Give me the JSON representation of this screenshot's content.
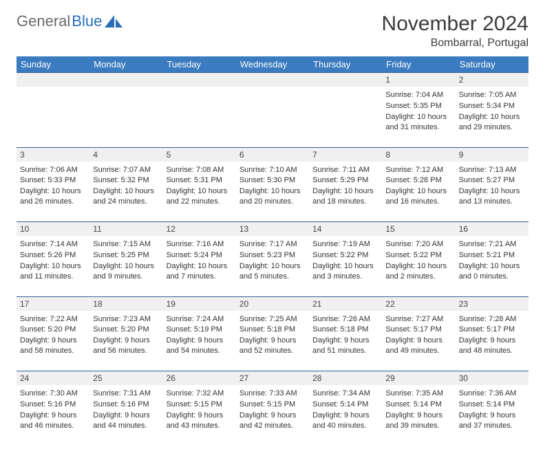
{
  "logo": {
    "text1": "General",
    "text2": "Blue"
  },
  "title": "November 2024",
  "location": "Bombarral, Portugal",
  "colors": {
    "header_bg": "#3b7bbf",
    "header_text": "#ffffff",
    "day_row_bg": "#f0f0f0",
    "border": "#2f5f95",
    "logo_gray": "#6b6b6b",
    "logo_blue": "#2a6db8"
  },
  "weekdays": [
    "Sunday",
    "Monday",
    "Tuesday",
    "Wednesday",
    "Thursday",
    "Friday",
    "Saturday"
  ],
  "weeks": [
    {
      "nums": [
        "",
        "",
        "",
        "",
        "",
        "1",
        "2"
      ],
      "cells": [
        null,
        null,
        null,
        null,
        null,
        {
          "sunrise": "Sunrise: 7:04 AM",
          "sunset": "Sunset: 5:35 PM",
          "day": "Daylight: 10 hours and 31 minutes."
        },
        {
          "sunrise": "Sunrise: 7:05 AM",
          "sunset": "Sunset: 5:34 PM",
          "day": "Daylight: 10 hours and 29 minutes."
        }
      ]
    },
    {
      "nums": [
        "3",
        "4",
        "5",
        "6",
        "7",
        "8",
        "9"
      ],
      "cells": [
        {
          "sunrise": "Sunrise: 7:06 AM",
          "sunset": "Sunset: 5:33 PM",
          "day": "Daylight: 10 hours and 26 minutes."
        },
        {
          "sunrise": "Sunrise: 7:07 AM",
          "sunset": "Sunset: 5:32 PM",
          "day": "Daylight: 10 hours and 24 minutes."
        },
        {
          "sunrise": "Sunrise: 7:08 AM",
          "sunset": "Sunset: 5:31 PM",
          "day": "Daylight: 10 hours and 22 minutes."
        },
        {
          "sunrise": "Sunrise: 7:10 AM",
          "sunset": "Sunset: 5:30 PM",
          "day": "Daylight: 10 hours and 20 minutes."
        },
        {
          "sunrise": "Sunrise: 7:11 AM",
          "sunset": "Sunset: 5:29 PM",
          "day": "Daylight: 10 hours and 18 minutes."
        },
        {
          "sunrise": "Sunrise: 7:12 AM",
          "sunset": "Sunset: 5:28 PM",
          "day": "Daylight: 10 hours and 16 minutes."
        },
        {
          "sunrise": "Sunrise: 7:13 AM",
          "sunset": "Sunset: 5:27 PM",
          "day": "Daylight: 10 hours and 13 minutes."
        }
      ]
    },
    {
      "nums": [
        "10",
        "11",
        "12",
        "13",
        "14",
        "15",
        "16"
      ],
      "cells": [
        {
          "sunrise": "Sunrise: 7:14 AM",
          "sunset": "Sunset: 5:26 PM",
          "day": "Daylight: 10 hours and 11 minutes."
        },
        {
          "sunrise": "Sunrise: 7:15 AM",
          "sunset": "Sunset: 5:25 PM",
          "day": "Daylight: 10 hours and 9 minutes."
        },
        {
          "sunrise": "Sunrise: 7:16 AM",
          "sunset": "Sunset: 5:24 PM",
          "day": "Daylight: 10 hours and 7 minutes."
        },
        {
          "sunrise": "Sunrise: 7:17 AM",
          "sunset": "Sunset: 5:23 PM",
          "day": "Daylight: 10 hours and 5 minutes."
        },
        {
          "sunrise": "Sunrise: 7:19 AM",
          "sunset": "Sunset: 5:22 PM",
          "day": "Daylight: 10 hours and 3 minutes."
        },
        {
          "sunrise": "Sunrise: 7:20 AM",
          "sunset": "Sunset: 5:22 PM",
          "day": "Daylight: 10 hours and 2 minutes."
        },
        {
          "sunrise": "Sunrise: 7:21 AM",
          "sunset": "Sunset: 5:21 PM",
          "day": "Daylight: 10 hours and 0 minutes."
        }
      ]
    },
    {
      "nums": [
        "17",
        "18",
        "19",
        "20",
        "21",
        "22",
        "23"
      ],
      "cells": [
        {
          "sunrise": "Sunrise: 7:22 AM",
          "sunset": "Sunset: 5:20 PM",
          "day": "Daylight: 9 hours and 58 minutes."
        },
        {
          "sunrise": "Sunrise: 7:23 AM",
          "sunset": "Sunset: 5:20 PM",
          "day": "Daylight: 9 hours and 56 minutes."
        },
        {
          "sunrise": "Sunrise: 7:24 AM",
          "sunset": "Sunset: 5:19 PM",
          "day": "Daylight: 9 hours and 54 minutes."
        },
        {
          "sunrise": "Sunrise: 7:25 AM",
          "sunset": "Sunset: 5:18 PM",
          "day": "Daylight: 9 hours and 52 minutes."
        },
        {
          "sunrise": "Sunrise: 7:26 AM",
          "sunset": "Sunset: 5:18 PM",
          "day": "Daylight: 9 hours and 51 minutes."
        },
        {
          "sunrise": "Sunrise: 7:27 AM",
          "sunset": "Sunset: 5:17 PM",
          "day": "Daylight: 9 hours and 49 minutes."
        },
        {
          "sunrise": "Sunrise: 7:28 AM",
          "sunset": "Sunset: 5:17 PM",
          "day": "Daylight: 9 hours and 48 minutes."
        }
      ]
    },
    {
      "nums": [
        "24",
        "25",
        "26",
        "27",
        "28",
        "29",
        "30"
      ],
      "cells": [
        {
          "sunrise": "Sunrise: 7:30 AM",
          "sunset": "Sunset: 5:16 PM",
          "day": "Daylight: 9 hours and 46 minutes."
        },
        {
          "sunrise": "Sunrise: 7:31 AM",
          "sunset": "Sunset: 5:16 PM",
          "day": "Daylight: 9 hours and 44 minutes."
        },
        {
          "sunrise": "Sunrise: 7:32 AM",
          "sunset": "Sunset: 5:15 PM",
          "day": "Daylight: 9 hours and 43 minutes."
        },
        {
          "sunrise": "Sunrise: 7:33 AM",
          "sunset": "Sunset: 5:15 PM",
          "day": "Daylight: 9 hours and 42 minutes."
        },
        {
          "sunrise": "Sunrise: 7:34 AM",
          "sunset": "Sunset: 5:14 PM",
          "day": "Daylight: 9 hours and 40 minutes."
        },
        {
          "sunrise": "Sunrise: 7:35 AM",
          "sunset": "Sunset: 5:14 PM",
          "day": "Daylight: 9 hours and 39 minutes."
        },
        {
          "sunrise": "Sunrise: 7:36 AM",
          "sunset": "Sunset: 5:14 PM",
          "day": "Daylight: 9 hours and 37 minutes."
        }
      ]
    }
  ]
}
